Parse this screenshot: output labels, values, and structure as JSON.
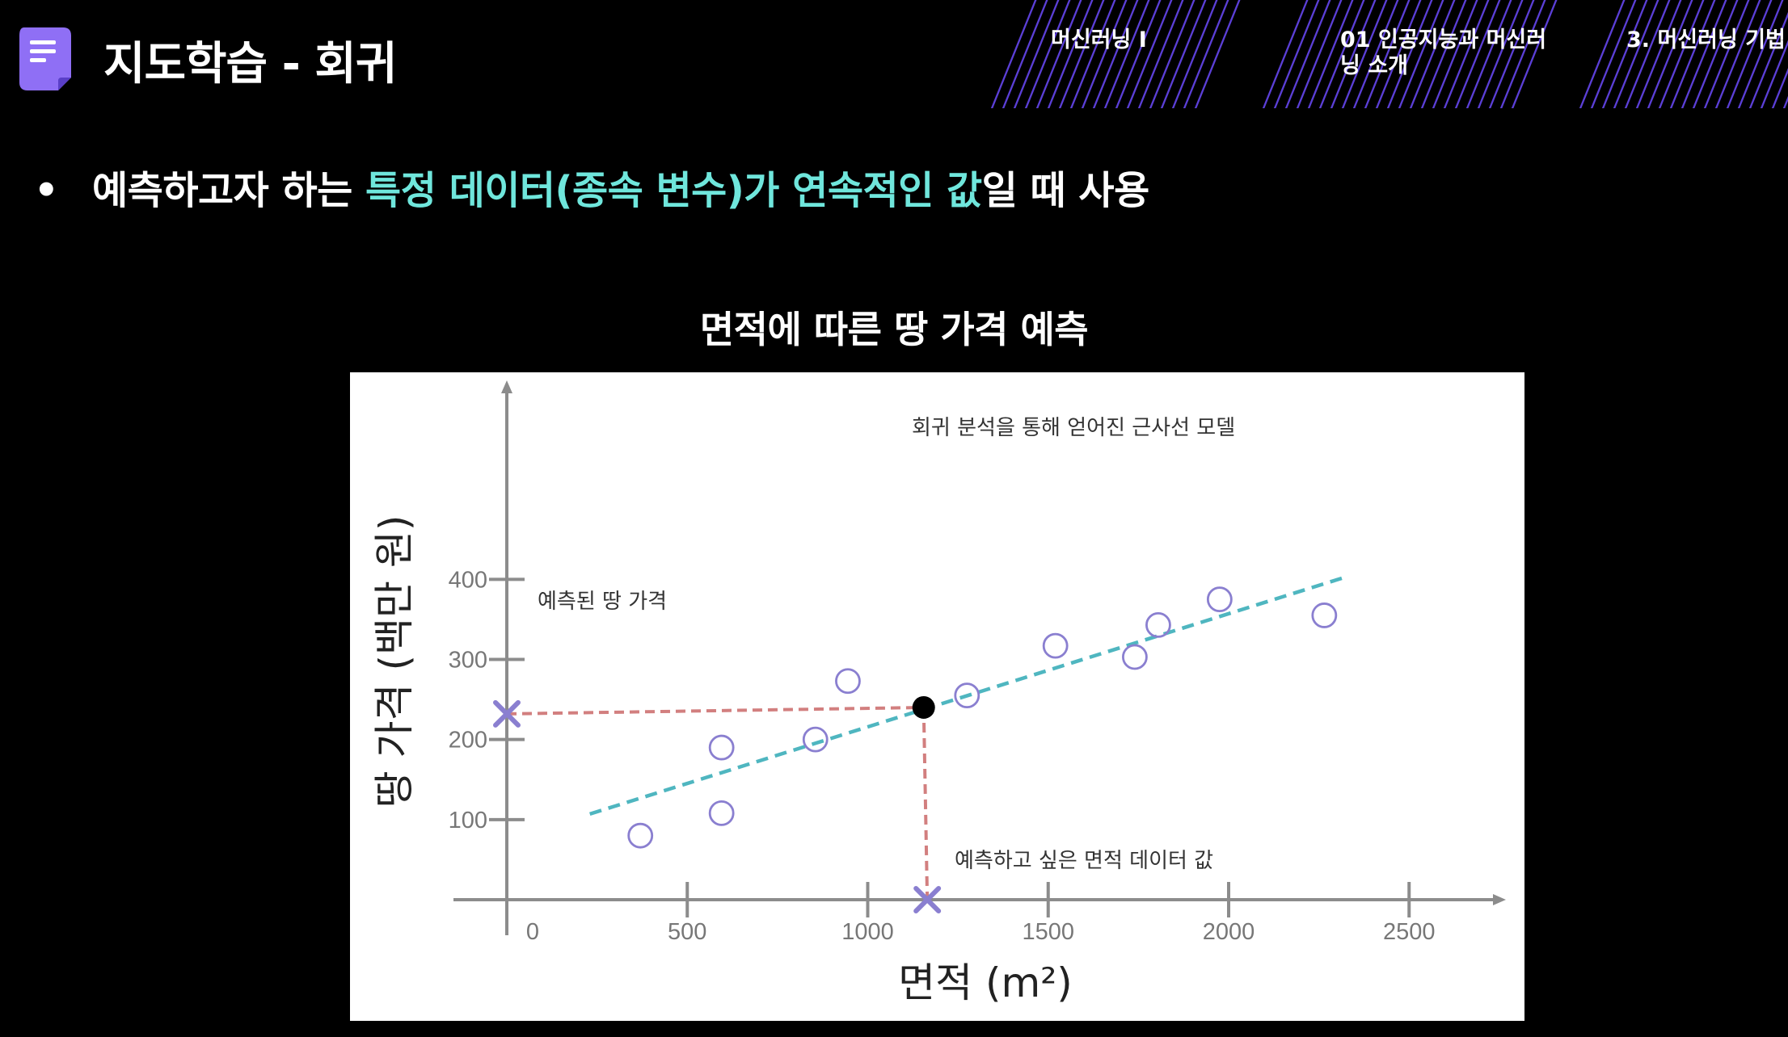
{
  "header": {
    "title": "지도학습 - 회귀",
    "breadcrumbs": [
      "머신러닝 I",
      "01 인공지능과 머신러닝 소개",
      "3. 머신러닝 기법"
    ],
    "accent_color": "#7b5cf0"
  },
  "bullet": {
    "prefix": "예측하고자 하는 ",
    "highlight1": "특정 데이터(종속 변수)가 연속적인 값",
    "suffix": "일 때 사용",
    "highlight_color": "#6fe6dc"
  },
  "chart_title": "면적에 따른 땅 가격 예측",
  "chart_data": {
    "type": "scatter",
    "xlabel": "면적 (m²)",
    "ylabel": "땅 가격 (백만 원)",
    "xlim": [
      0,
      2700
    ],
    "ylim": [
      0,
      450
    ],
    "x_ticks": [
      0,
      500,
      1000,
      1500,
      2000,
      2500
    ],
    "y_ticks": [
      100,
      200,
      300,
      400
    ],
    "points": [
      {
        "x": 370,
        "y": 80
      },
      {
        "x": 595,
        "y": 108
      },
      {
        "x": 595,
        "y": 190
      },
      {
        "x": 855,
        "y": 200
      },
      {
        "x": 945,
        "y": 273
      },
      {
        "x": 1275,
        "y": 255
      },
      {
        "x": 1520,
        "y": 317
      },
      {
        "x": 1740,
        "y": 303
      },
      {
        "x": 1805,
        "y": 343
      },
      {
        "x": 1975,
        "y": 375
      },
      {
        "x": 2265,
        "y": 355
      }
    ],
    "regression_line": {
      "x": [
        230,
        2325
      ],
      "y": [
        107,
        403
      ],
      "color": "#4fb6c0"
    },
    "predicted_point": {
      "x": 1155,
      "y": 240
    },
    "query_marker": {
      "x": 1165,
      "y": 0
    },
    "prediction_marker": {
      "x": 0,
      "y": 232
    },
    "annotations": {
      "model": "회귀 분석을 통해 얻어진 근사선 모델",
      "predicted": "예측된 땅 가격",
      "query": "예측하고 싶은 면적 데이터 값"
    },
    "colors": {
      "points": "#8a7fd0",
      "markers": "#8a7fd0",
      "guides": "#d27f7f",
      "axis": "#8c8c8c"
    }
  }
}
